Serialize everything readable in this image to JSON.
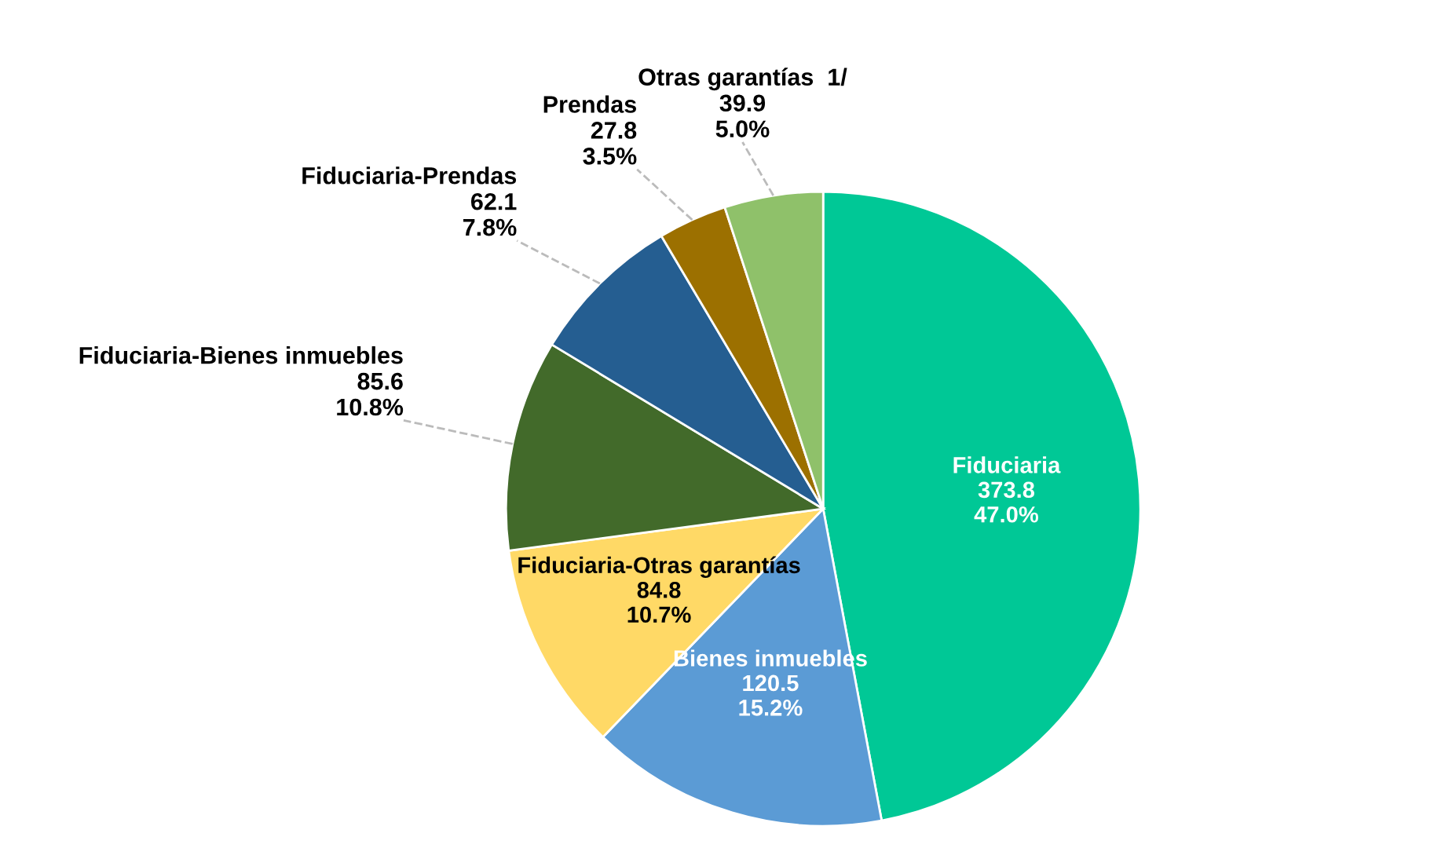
{
  "chart_data": {
    "type": "pie",
    "categories": [
      "Fiduciaria",
      "Bienes inmuebles",
      "Fiduciaria-Otras garantías",
      "Fiduciaria-Bienes inmuebles",
      "Fiduciaria-Prendas",
      "Prendas",
      "Otras garantías  1/"
    ],
    "values": [
      373.8,
      120.5,
      84.8,
      85.6,
      62.1,
      27.8,
      39.9
    ],
    "value_labels": [
      "373.8\n47.0%",
      "120.5\n15.2%",
      "84.8\n10.7%",
      "85.6\n10.8%",
      "62.1\n7.8%",
      "27.8\n3.5%",
      "39.9\n5.0%"
    ],
    "colors": [
      "#00c896",
      "#5b9bd5",
      "#ffd966",
      "#426a2a",
      "#255e91",
      "#9c7000",
      "#8fc16a"
    ],
    "legend": false
  }
}
